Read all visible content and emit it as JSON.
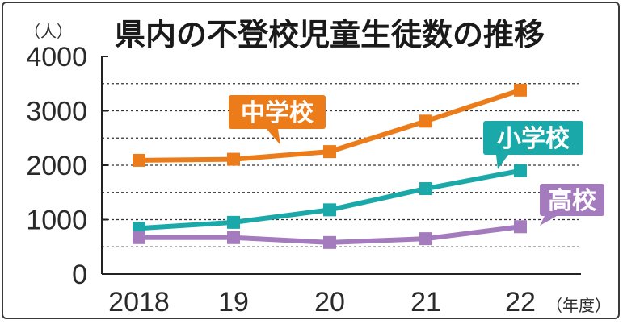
{
  "chart_data": {
    "type": "line",
    "title": "県内の不登校児童生徒数の推移",
    "y_unit": "（人）",
    "x_unit": "（年度）",
    "categories": [
      "2018",
      "19",
      "20",
      "21",
      "22"
    ],
    "y_ticks": [
      "0",
      "1000",
      "2000",
      "3000",
      "4000"
    ],
    "ylim": [
      0,
      4000
    ],
    "grid": "dashed horizontal every 500",
    "series": [
      {
        "name": "中学校",
        "color": "#ec7c1a",
        "values": [
          2090,
          2110,
          2250,
          2810,
          3380
        ]
      },
      {
        "name": "小学校",
        "color": "#1aa8a8",
        "values": [
          840,
          950,
          1180,
          1570,
          1900
        ]
      },
      {
        "name": "高校",
        "color": "#a47bbd",
        "values": [
          670,
          670,
          580,
          650,
          870
        ]
      }
    ]
  }
}
